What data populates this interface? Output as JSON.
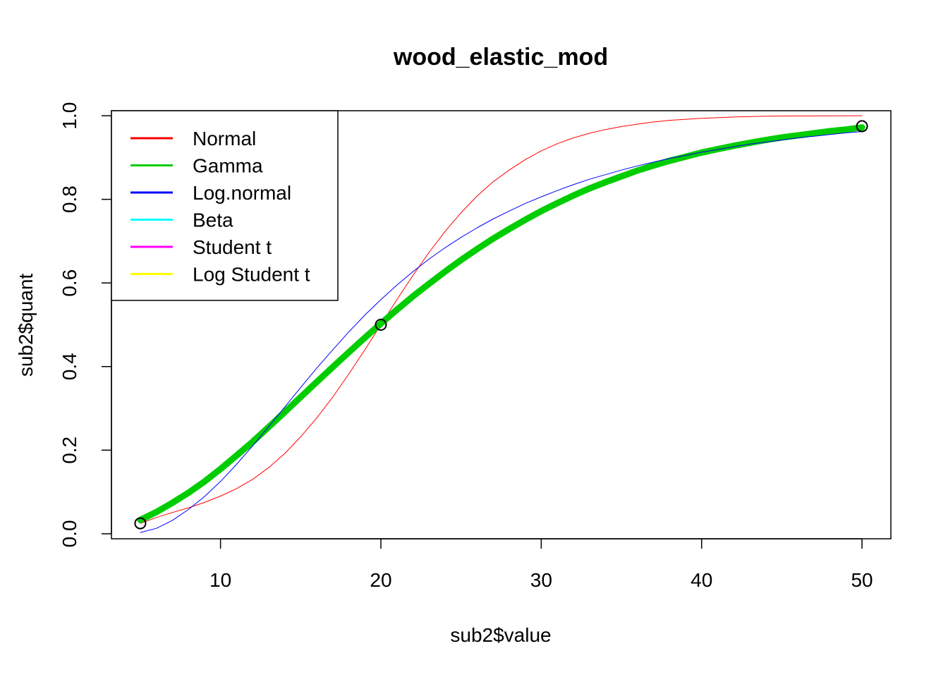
{
  "chart_data": {
    "type": "line",
    "title": "wood_elastic_mod",
    "xlabel": "sub2$value",
    "ylabel": "sub2$quant",
    "xlim": [
      3.2,
      51.8
    ],
    "ylim": [
      -0.012,
      1.012
    ],
    "x_ticks": [
      10,
      20,
      30,
      40,
      50
    ],
    "y_ticks": [
      0.0,
      0.2,
      0.4,
      0.6,
      0.8,
      1.0
    ],
    "x_tick_labels": [
      "10",
      "20",
      "30",
      "40",
      "50"
    ],
    "y_tick_labels": [
      "0.0",
      "0.2",
      "0.4",
      "0.6",
      "0.8",
      "1.0"
    ],
    "grid": false,
    "legend_position": "top-left",
    "points": [
      {
        "x": 5,
        "y": 0.025
      },
      {
        "x": 20,
        "y": 0.5
      },
      {
        "x": 50,
        "y": 0.975
      }
    ],
    "series": [
      {
        "name": "Normal",
        "color": "#FF0000",
        "legend_color": "#FF0000",
        "stroke": 1,
        "x": [
          5,
          6,
          7,
          8,
          9,
          10,
          11,
          12,
          13,
          14,
          15,
          16,
          17,
          18,
          19,
          20,
          21,
          22,
          23,
          24,
          25,
          26,
          27,
          28,
          29,
          30,
          31,
          32,
          33,
          34,
          35,
          36,
          37,
          38,
          40,
          42,
          44,
          46,
          48,
          50
        ],
        "y": [
          0.025,
          0.039,
          0.051,
          0.062,
          0.075,
          0.09,
          0.108,
          0.13,
          0.158,
          0.192,
          0.232,
          0.277,
          0.327,
          0.382,
          0.44,
          0.5,
          0.56,
          0.618,
          0.673,
          0.723,
          0.768,
          0.808,
          0.842,
          0.87,
          0.895,
          0.916,
          0.933,
          0.947,
          0.958,
          0.967,
          0.974,
          0.98,
          0.985,
          0.989,
          0.994,
          0.997,
          0.999,
          0.9995,
          0.9998,
          1.0
        ]
      },
      {
        "name": "Gamma",
        "color": "#00CD00",
        "legend_color": "#00CD00",
        "stroke": 9,
        "x": [
          5,
          6,
          7,
          8,
          9,
          10,
          11,
          12,
          13,
          14,
          15,
          16,
          17,
          18,
          19,
          20,
          21,
          22,
          23,
          24,
          25,
          26,
          27,
          28,
          29,
          30,
          31,
          32,
          33,
          34,
          35,
          36,
          37,
          38,
          39,
          40,
          41,
          42,
          43,
          44,
          45,
          46,
          47,
          48,
          49,
          50
        ],
        "y": [
          0.033,
          0.052,
          0.074,
          0.098,
          0.125,
          0.155,
          0.187,
          0.22,
          0.255,
          0.291,
          0.327,
          0.363,
          0.399,
          0.434,
          0.469,
          0.503,
          0.536,
          0.568,
          0.598,
          0.627,
          0.655,
          0.681,
          0.706,
          0.729,
          0.751,
          0.772,
          0.791,
          0.809,
          0.826,
          0.841,
          0.855,
          0.869,
          0.881,
          0.892,
          0.902,
          0.912,
          0.92,
          0.928,
          0.935,
          0.942,
          0.948,
          0.953,
          0.958,
          0.963,
          0.967,
          0.972
        ]
      },
      {
        "name": "Log.normal",
        "color": "#0000FF",
        "legend_color": "#0000FF",
        "stroke": 1,
        "x": [
          5,
          6,
          7,
          8,
          9,
          10,
          11,
          12,
          13,
          14,
          15,
          16,
          17,
          18,
          19,
          20,
          21,
          22,
          23,
          24,
          25,
          26,
          27,
          28,
          29,
          30,
          31,
          32,
          33,
          34,
          35,
          36,
          37,
          38,
          39,
          40,
          41,
          42,
          43,
          44,
          45,
          46,
          47,
          48,
          49,
          50
        ],
        "y": [
          0.003,
          0.013,
          0.032,
          0.058,
          0.089,
          0.125,
          0.166,
          0.21,
          0.256,
          0.303,
          0.35,
          0.396,
          0.44,
          0.483,
          0.523,
          0.56,
          0.595,
          0.627,
          0.657,
          0.684,
          0.709,
          0.732,
          0.753,
          0.772,
          0.79,
          0.806,
          0.821,
          0.835,
          0.848,
          0.859,
          0.87,
          0.88,
          0.889,
          0.898,
          0.905,
          0.913,
          0.919,
          0.926,
          0.932,
          0.937,
          0.942,
          0.947,
          0.951,
          0.955,
          0.959,
          0.962
        ]
      },
      {
        "name": "Beta",
        "color": "#00FFFF",
        "legend_color": "#00FFFF",
        "stroke": 1,
        "x": [],
        "y": []
      },
      {
        "name": "Student t",
        "color": "#FF00FF",
        "legend_color": "#FF00FF",
        "stroke": 1,
        "x": [],
        "y": []
      },
      {
        "name": "Log Student t",
        "color": "#FFFF00",
        "legend_color": "#FFFF00",
        "stroke": 1,
        "x": [],
        "y": []
      }
    ]
  }
}
